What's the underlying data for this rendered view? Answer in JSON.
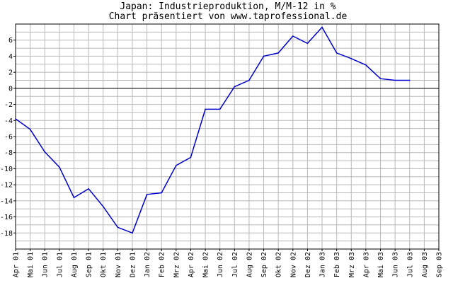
{
  "chart_data": {
    "type": "line",
    "title": "Japan: Industrieproduktion, M/M-12 in %",
    "subtitle": "Chart präsentiert von www.taprofessional.de",
    "xlabel": "",
    "ylabel": "",
    "grid": true,
    "ylim": [
      -20,
      8
    ],
    "ytick_values": [
      6,
      4,
      2,
      0,
      -2,
      -4,
      -6,
      -8,
      -10,
      -12,
      -14,
      -16,
      -18
    ],
    "categories": [
      "Apr 01",
      "Mai 01",
      "Jun 01",
      "Jul 01",
      "Aug 01",
      "Sep 01",
      "Okt 01",
      "Nov 01",
      "Dez 01",
      "Jan 02",
      "Feb 02",
      "Mrz 02",
      "Apr 02",
      "Mai 02",
      "Jun 02",
      "Jul 02",
      "Aug 02",
      "Sep 02",
      "Okt 02",
      "Nov 02",
      "Dez 02",
      "Jan 03",
      "Feb 03",
      "Mrz 03",
      "Apr 03",
      "Mai 03",
      "Jun 03",
      "Jul 03",
      "Aug 03",
      "Sep 03"
    ],
    "series": [
      {
        "color": "#0000cc",
        "values": [
          -3.8,
          -5.1,
          -7.9,
          -9.8,
          -13.6,
          -12.5,
          -14.7,
          -17.3,
          -18.0,
          -13.2,
          -13.0,
          -9.6,
          -8.6,
          -2.6,
          -2.6,
          0.2,
          1.0,
          4.0,
          4.4,
          6.5,
          5.6,
          7.6,
          4.4,
          3.7,
          2.9,
          1.2,
          1.0,
          1.0,
          null,
          null
        ]
      }
    ],
    "zero_line": 0
  }
}
